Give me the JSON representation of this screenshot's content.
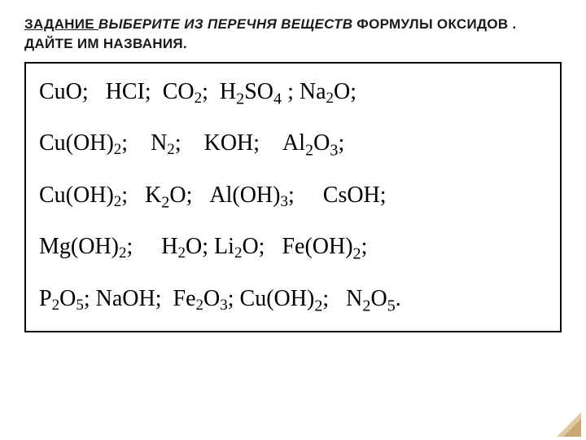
{
  "heading": {
    "part1": "ЗАДАНИЕ ",
    "part2": "ВЫБЕРИТЕ ИЗ ПЕРЕЧНЯ ВЕЩЕСТВ ",
    "part3": "ФОРМУЛЫ ОКСИДОВ . ДАЙТЕ ИМ НАЗВАНИЯ.",
    "font_size": 17,
    "color": "#1a1a1a"
  },
  "box": {
    "border_color": "#000000",
    "border_width": 2,
    "background": "#ffffff"
  },
  "lines": [
    {
      "items": [
        {
          "t": "CuO;"
        },
        {
          "t": "   "
        },
        {
          "t": "HCI;"
        },
        {
          "t": "  "
        },
        {
          "t": "CO"
        },
        {
          "sub": "2",
          "small": true
        },
        {
          "t": ";"
        },
        {
          "t": "  "
        },
        {
          "t": "H"
        },
        {
          "sub": "2"
        },
        {
          "t": "SO"
        },
        {
          "sub": "4"
        },
        {
          "t": " ;"
        },
        {
          "t": " "
        },
        {
          "t": "Na"
        },
        {
          "sub": "2",
          "small": true
        },
        {
          "t": "O;"
        }
      ]
    },
    {
      "items": [
        {
          "t": "Cu(OH)"
        },
        {
          "sub": "2",
          "small": true
        },
        {
          "t": ";"
        },
        {
          "t": "    "
        },
        {
          "t": "N"
        },
        {
          "sub": "2",
          "small": true
        },
        {
          "t": ";"
        },
        {
          "t": "    "
        },
        {
          "t": "KOH;"
        },
        {
          "t": "    "
        },
        {
          "t": "Al"
        },
        {
          "sub": "2"
        },
        {
          "t": "O"
        },
        {
          "sub": "3"
        },
        {
          "t": ";"
        }
      ]
    },
    {
      "items": [
        {
          "t": "Cu(OH)"
        },
        {
          "sub": "2",
          "small": true
        },
        {
          "t": ";"
        },
        {
          "t": "   "
        },
        {
          "t": "K"
        },
        {
          "sub": "2"
        },
        {
          "t": "O;"
        },
        {
          "t": "   "
        },
        {
          "t": "Al(OH)"
        },
        {
          "sub": "3",
          "small": true
        },
        {
          "t": ";"
        },
        {
          "t": "     "
        },
        {
          "t": "CsOH;"
        }
      ]
    },
    {
      "items": [
        {
          "t": "Mg(OH)"
        },
        {
          "sub": "2",
          "small": true
        },
        {
          "t": ";"
        },
        {
          "t": "     "
        },
        {
          "t": "H"
        },
        {
          "sub": "2",
          "small": true
        },
        {
          "t": "O;"
        },
        {
          "t": " "
        },
        {
          "t": "Li"
        },
        {
          "sub": "2",
          "small": true
        },
        {
          "t": "O;"
        },
        {
          "t": "   "
        },
        {
          "t": "Fe(OH)"
        },
        {
          "sub": "2"
        },
        {
          "t": ";"
        }
      ]
    },
    {
      "items": [
        {
          "t": "P"
        },
        {
          "sub": "2",
          "small": true
        },
        {
          "t": "O"
        },
        {
          "sub": "5",
          "small": true
        },
        {
          "t": ";"
        },
        {
          "t": " "
        },
        {
          "t": "NaOH;"
        },
        {
          "t": "  "
        },
        {
          "t": "Fe"
        },
        {
          "sub": "2",
          "small": true
        },
        {
          "t": "O"
        },
        {
          "sub": "3",
          "small": true
        },
        {
          "t": ";"
        },
        {
          "t": " "
        },
        {
          "t": "Cu(OH)"
        },
        {
          "sub": "2"
        },
        {
          "t": ";"
        },
        {
          "t": "   "
        },
        {
          "t": "N"
        },
        {
          "sub": "2"
        },
        {
          "t": "O"
        },
        {
          "sub": "5"
        },
        {
          "t": "."
        }
      ]
    }
  ],
  "formula_style": {
    "font_family": "Times New Roman",
    "font_size": 28,
    "color": "#000000",
    "line_spacing": 30
  },
  "page_curl": {
    "outer_color": "#e2c9a6",
    "inner_color": "#c9a876"
  }
}
